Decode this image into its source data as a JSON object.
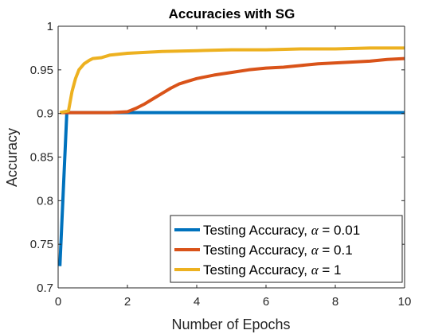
{
  "chart_data": {
    "type": "line",
    "title": "Accuracies with SG",
    "xlabel": "Number of Epochs",
    "ylabel": "Accuracy",
    "xlim": [
      0,
      10
    ],
    "ylim": [
      0.7,
      1
    ],
    "xticks": [
      0,
      2,
      4,
      6,
      8,
      10
    ],
    "xtick_labels": [
      "0",
      "2",
      "4",
      "6",
      "8",
      "10"
    ],
    "yticks": [
      0.7,
      0.75,
      0.8,
      0.85,
      0.9,
      0.95,
      1
    ],
    "ytick_labels": [
      "0.7",
      "0.75",
      "0.8",
      "0.85",
      "0.9",
      "0.95",
      "1"
    ],
    "grid": false,
    "legend_position": "bottom-right",
    "series": [
      {
        "name_prefix": "Testing Accuracy, ",
        "name_symbol": "α",
        "name_suffix": " = 0.01",
        "color": "#0072BD",
        "x": [
          0.05,
          0.25,
          0.5,
          1,
          2,
          3,
          4,
          5,
          6,
          7,
          8,
          9,
          10
        ],
        "y": [
          0.725,
          0.901,
          0.901,
          0.901,
          0.901,
          0.901,
          0.901,
          0.901,
          0.901,
          0.901,
          0.901,
          0.901,
          0.901
        ]
      },
      {
        "name_prefix": "Testing Accuracy, ",
        "name_symbol": "α",
        "name_suffix": " = 0.1",
        "color": "#D95319",
        "x": [
          0.05,
          0.5,
          1,
          1.5,
          2,
          2.25,
          2.5,
          2.75,
          3,
          3.25,
          3.5,
          3.75,
          4,
          4.5,
          5,
          5.5,
          6,
          6.5,
          7,
          7.5,
          8,
          8.5,
          9,
          9.5,
          10
        ],
        "y": [
          0.901,
          0.901,
          0.901,
          0.901,
          0.902,
          0.906,
          0.911,
          0.917,
          0.923,
          0.929,
          0.934,
          0.937,
          0.94,
          0.944,
          0.947,
          0.95,
          0.952,
          0.953,
          0.955,
          0.957,
          0.958,
          0.959,
          0.96,
          0.962,
          0.963
        ]
      },
      {
        "name_prefix": "Testing Accuracy, ",
        "name_symbol": "α",
        "name_suffix": " = 1",
        "color": "#EDB120",
        "x": [
          0.05,
          0.3,
          0.4,
          0.5,
          0.6,
          0.75,
          0.9,
          1,
          1.25,
          1.5,
          2,
          2.5,
          3,
          4,
          5,
          6,
          7,
          8,
          9,
          10
        ],
        "y": [
          0.901,
          0.903,
          0.925,
          0.94,
          0.95,
          0.957,
          0.961,
          0.963,
          0.964,
          0.967,
          0.969,
          0.97,
          0.971,
          0.972,
          0.973,
          0.973,
          0.974,
          0.974,
          0.975,
          0.975
        ]
      }
    ]
  }
}
